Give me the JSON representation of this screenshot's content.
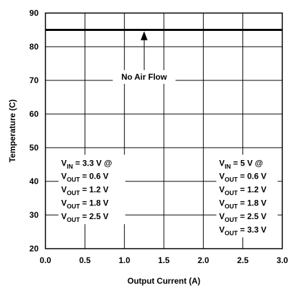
{
  "chart_data": {
    "type": "line",
    "xlabel": "Output Current (A)",
    "ylabel": "Temperature (C)",
    "xlim": [
      0.0,
      3.0
    ],
    "ylim": [
      20,
      90
    ],
    "x_ticks": [
      "0.0",
      "0.5",
      "1.0",
      "1.5",
      "2.0",
      "2.5",
      "3.0"
    ],
    "y_ticks": [
      "20",
      "30",
      "40",
      "50",
      "60",
      "70",
      "80",
      "90"
    ],
    "grid": true,
    "series": [
      {
        "x": [
          0.0,
          3.0
        ],
        "y": [
          85,
          85
        ],
        "color": "#000000"
      }
    ],
    "annotations": {
      "arrow": {
        "label": "No Air Flow",
        "x": 1.25,
        "y_tip": 85,
        "y_label": 71
      },
      "left_block": {
        "lines": [
          {
            "main": "V",
            "sub": "IN",
            "rest": " = 3.3 V @"
          },
          {
            "main": "V",
            "sub": "OUT",
            "rest": " = 0.6 V"
          },
          {
            "main": "V",
            "sub": "OUT",
            "rest": " = 1.2 V"
          },
          {
            "main": "V",
            "sub": "OUT",
            "rest": " = 1.8 V"
          },
          {
            "main": "V",
            "sub": "OUT",
            "rest": " = 2.5 V"
          }
        ]
      },
      "right_block": {
        "lines": [
          {
            "main": "V",
            "sub": "IN",
            "rest": " = 5 V @"
          },
          {
            "main": "V",
            "sub": "OUT",
            "rest": " = 0.6 V"
          },
          {
            "main": "V",
            "sub": "OUT",
            "rest": " = 1.2 V"
          },
          {
            "main": "V",
            "sub": "OUT",
            "rest": " = 1.8 V"
          },
          {
            "main": "V",
            "sub": "OUT",
            "rest": " = 2.5 V"
          },
          {
            "main": "V",
            "sub": "OUT",
            "rest": " = 3.3 V"
          }
        ]
      }
    }
  }
}
